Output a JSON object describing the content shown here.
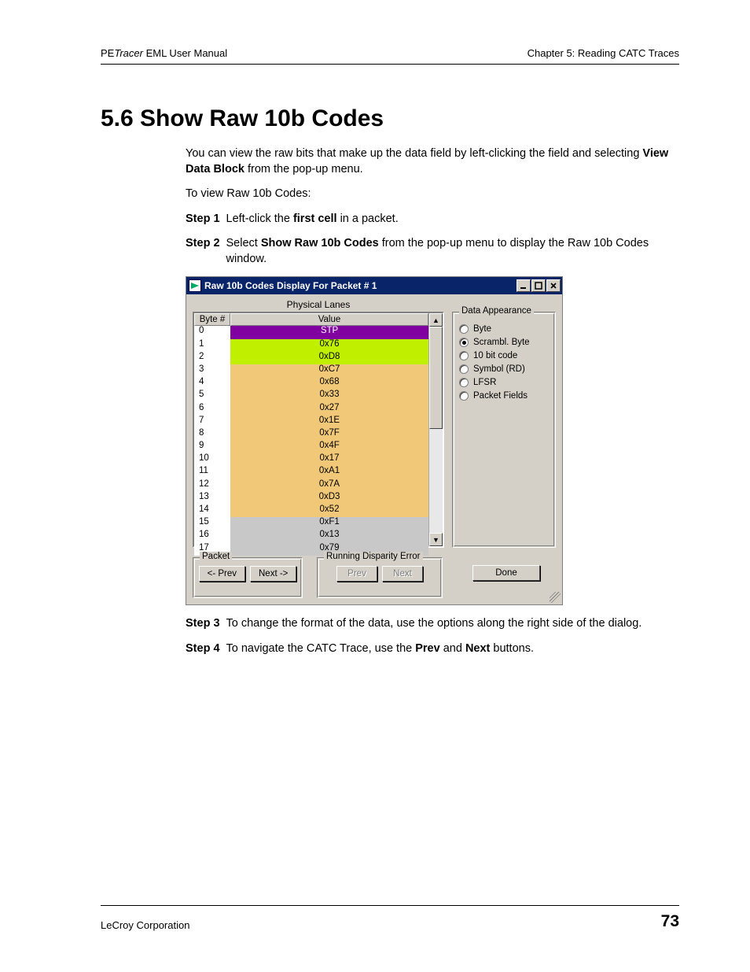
{
  "header": {
    "left_prefix": "PE",
    "left_italic": "Tracer",
    "left_suffix": " EML User Manual",
    "right": "Chapter 5: Reading CATC Traces"
  },
  "section_title": "5.6 Show Raw 10b Codes",
  "intro_a": "You can view the raw bits that make up the data field by left-clicking the field and selecting ",
  "intro_b_bold": "View Data Block",
  "intro_c": " from the pop-up menu.",
  "intro2": "To view Raw 10b Codes:",
  "steps": {
    "s1_label": "Step 1",
    "s1_a": "Left-click the ",
    "s1_b_bold": "first cell",
    "s1_c": " in a packet.",
    "s2_label": "Step 2",
    "s2_a": "Select ",
    "s2_b_bold": "Show Raw 10b Codes",
    "s2_c": " from the pop-up menu to display the Raw 10b Codes window.",
    "s3_label": "Step 3",
    "s3_text": "To change the format of the data, use the options along the right side of the dialog.",
    "s4_label": "Step 4",
    "s4_a": "To navigate the CATC Trace, use the ",
    "s4_b_bold": "Prev",
    "s4_c": " and ",
    "s4_d_bold": "Next",
    "s4_e": " buttons."
  },
  "dialog": {
    "title": "Raw 10b Codes Display For Packet # 1",
    "lanes_label": "Physical Lanes",
    "col_byte": "Byte #",
    "col_value": "Value",
    "rows": [
      {
        "n": "0",
        "v": "STP",
        "bg": "#8000a0",
        "fg": "#ffffff"
      },
      {
        "n": "1",
        "v": "0x76",
        "bg": "#c0f000",
        "fg": "#000000"
      },
      {
        "n": "2",
        "v": "0xD8",
        "bg": "#c0f000",
        "fg": "#000000"
      },
      {
        "n": "3",
        "v": "0xC7",
        "bg": "#f0c878",
        "fg": "#000000"
      },
      {
        "n": "4",
        "v": "0x68",
        "bg": "#f0c878",
        "fg": "#000000"
      },
      {
        "n": "5",
        "v": "0x33",
        "bg": "#f0c878",
        "fg": "#000000"
      },
      {
        "n": "6",
        "v": "0x27",
        "bg": "#f0c878",
        "fg": "#000000"
      },
      {
        "n": "7",
        "v": "0x1E",
        "bg": "#f0c878",
        "fg": "#000000"
      },
      {
        "n": "8",
        "v": "0x7F",
        "bg": "#f0c878",
        "fg": "#000000"
      },
      {
        "n": "9",
        "v": "0x4F",
        "bg": "#f0c878",
        "fg": "#000000"
      },
      {
        "n": "10",
        "v": "0x17",
        "bg": "#f0c878",
        "fg": "#000000"
      },
      {
        "n": "11",
        "v": "0xA1",
        "bg": "#f0c878",
        "fg": "#000000"
      },
      {
        "n": "12",
        "v": "0x7A",
        "bg": "#f0c878",
        "fg": "#000000"
      },
      {
        "n": "13",
        "v": "0xD3",
        "bg": "#f0c878",
        "fg": "#000000"
      },
      {
        "n": "14",
        "v": "0x52",
        "bg": "#f0c878",
        "fg": "#000000"
      },
      {
        "n": "15",
        "v": "0xF1",
        "bg": "#c8c8c8",
        "fg": "#000000"
      },
      {
        "n": "16",
        "v": "0x13",
        "bg": "#c8c8c8",
        "fg": "#000000"
      },
      {
        "n": "17",
        "v": "0x79",
        "bg": "#c8c8c8",
        "fg": "#000000"
      }
    ],
    "appearance_legend": "Data Appearance",
    "radio_opts": [
      "Byte",
      "Scrambl. Byte",
      "10 bit code",
      "Symbol (RD)",
      "LFSR",
      "Packet Fields"
    ],
    "radio_selected_index": 1,
    "packet_legend": "Packet",
    "packet_prev": "<- Prev",
    "packet_next": "Next ->",
    "rde_legend": "Running Disparity Error",
    "rde_prev": "Prev",
    "rde_next": "Next",
    "done": "Done"
  },
  "footer": {
    "left": "LeCroy Corporation",
    "page": "73"
  },
  "colors": {
    "titlebar": "#0a246a",
    "dialog_bg": "#d4d0c8",
    "stp_bg": "#8000a0",
    "lime_bg": "#c0f000",
    "tan_bg": "#f0c878",
    "gray_bg": "#c8c8c8"
  }
}
